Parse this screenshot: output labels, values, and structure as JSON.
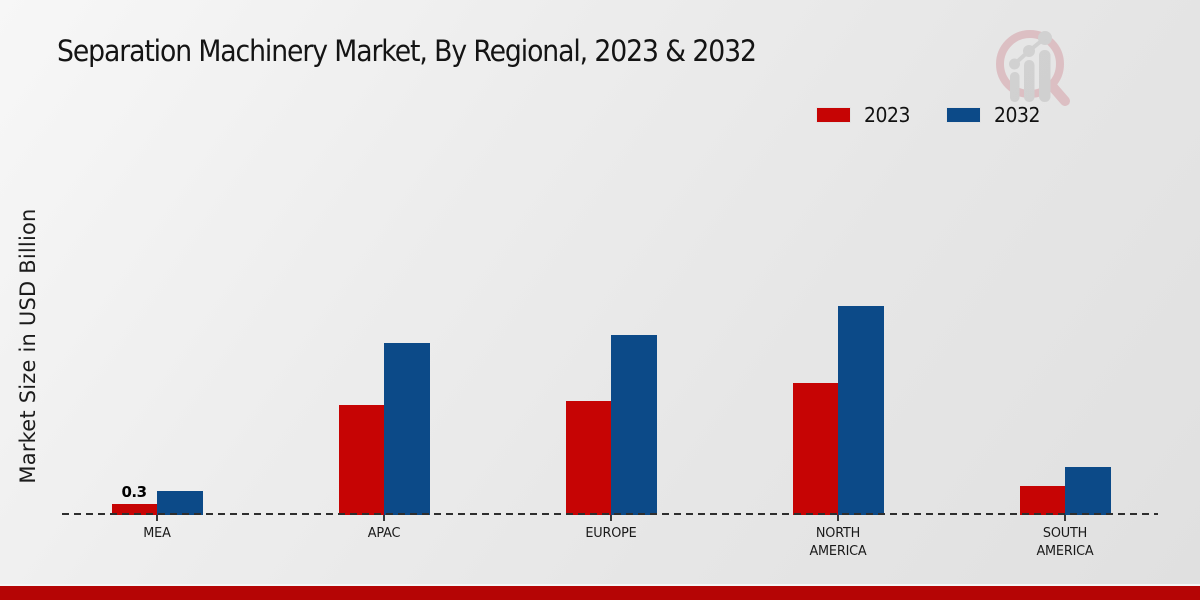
{
  "chart": {
    "title": "Separation Machinery Market, By Regional, 2023 & 2032",
    "ylabel": "Market Size in USD Billion"
  },
  "legend": {
    "items": [
      {
        "label": "2023",
        "color": "#c60404"
      },
      {
        "label": "2032",
        "color": "#0c4a88"
      }
    ]
  },
  "chart_data": {
    "type": "bar",
    "title": "Separation Machinery Market, By Regional, 2023 & 2032",
    "xlabel": "",
    "ylabel": "Market Size in USD Billion",
    "categories": [
      "MEA",
      "APAC",
      "EUROPE",
      "NORTH AMERICA",
      "SOUTH AMERICA"
    ],
    "series": [
      {
        "name": "2023",
        "color": "#c60404",
        "values": [
          0.3,
          3.0,
          3.1,
          3.6,
          0.8
        ]
      },
      {
        "name": "2032",
        "color": "#0c4a88",
        "values": [
          0.65,
          4.7,
          4.9,
          5.7,
          1.3
        ]
      }
    ],
    "data_labels": [
      {
        "series": "2023",
        "category": "MEA",
        "text": "0.3"
      }
    ],
    "ylim": [
      0,
      6.5
    ],
    "grid": false,
    "legend_position": "top-right",
    "baseline_style": "dashed",
    "y_axis_ticks_visible": false
  },
  "watermark": {
    "icon": "magnifier-bar-chart-logo"
  },
  "footer": {
    "band_color": "#b50505"
  }
}
